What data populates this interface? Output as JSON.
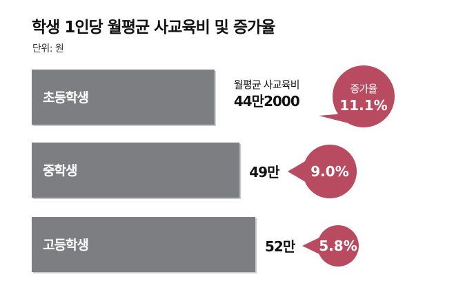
{
  "chart_data": {
    "type": "bar",
    "orientation": "horizontal",
    "title": "학생 1인당 월평균 사교육비 및 증가율",
    "unit": "단위: 원",
    "value_header": "월평균 사교육비",
    "growth_header": "증가율",
    "categories": [
      "초등학생",
      "중학생",
      "고등학생"
    ],
    "values": [
      442000,
      490000,
      520000
    ],
    "value_labels": [
      "44만2000",
      "49만",
      "52만"
    ],
    "growth_rates": [
      11.1,
      9.0,
      5.8
    ],
    "growth_labels": [
      "11.1%",
      "9.0%",
      "5.8%"
    ],
    "colors": {
      "bar": "#7d7e81",
      "bubble": "#b94b61"
    }
  }
}
